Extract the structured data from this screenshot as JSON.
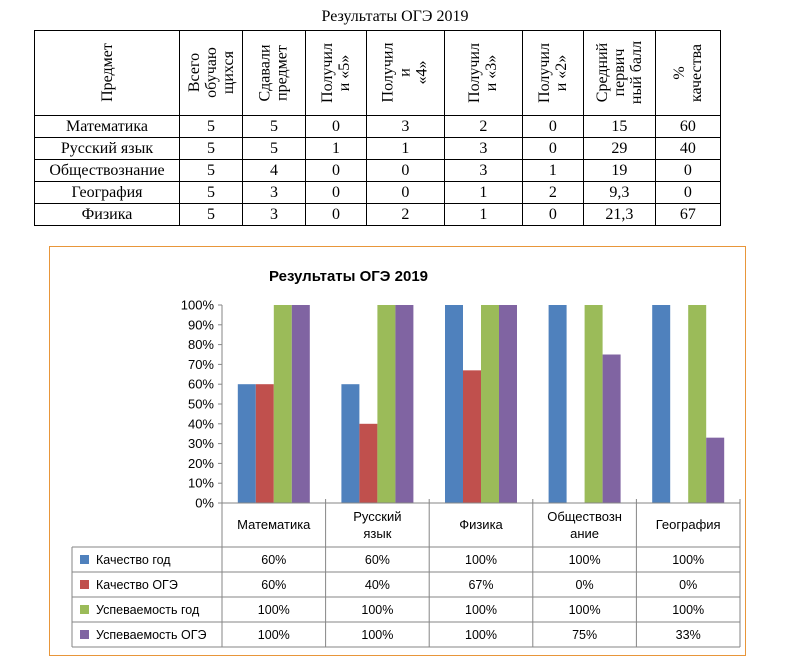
{
  "document": {
    "title": "Результаты ОГЭ 2019"
  },
  "table": {
    "headers": [
      "Предмет",
      "Всего\nобучаю\nщихся",
      "Сдавали\nпредмет",
      "Получил\nи «5»",
      "Получил\nи\n«4»",
      "Получил\nи «3»",
      "Получил\nи «2»",
      "Средний\nпервич\nный балл",
      "%\nкачества"
    ],
    "rows": [
      [
        "Математика",
        "5",
        "5",
        "0",
        "3",
        "2",
        "0",
        "15",
        "60"
      ],
      [
        "Русский язык",
        "5",
        "5",
        "1",
        "1",
        "3",
        "0",
        "29",
        "40"
      ],
      [
        "Обществознание",
        "5",
        "4",
        "0",
        "0",
        "3",
        "1",
        "19",
        "0"
      ],
      [
        "География",
        "5",
        "3",
        "0",
        "0",
        "1",
        "2",
        "9,3",
        "0"
      ],
      [
        "Физика",
        "5",
        "3",
        "0",
        "2",
        "1",
        "0",
        "21,3",
        "67"
      ]
    ]
  },
  "chart_data": {
    "type": "bar",
    "title": "Результаты ОГЭ 2019",
    "categories": [
      "Математика",
      "Русский язык",
      "Физика",
      "Обществознание",
      "География"
    ],
    "category_labels": [
      [
        "Математика"
      ],
      [
        "Русский",
        "язык"
      ],
      [
        "Физика"
      ],
      [
        "Обществозн",
        "ание"
      ],
      [
        "География"
      ]
    ],
    "ylim": [
      0,
      100
    ],
    "yticks": [
      "0%",
      "10%",
      "20%",
      "30%",
      "40%",
      "50%",
      "60%",
      "70%",
      "80%",
      "90%",
      "100%"
    ],
    "grid": false,
    "legend": "data-table",
    "series": [
      {
        "name": "Качество год",
        "color": "#4f81bd",
        "values": [
          60,
          60,
          100,
          100,
          100
        ],
        "labels": [
          "60%",
          "60%",
          "100%",
          "100%",
          "100%"
        ]
      },
      {
        "name": "Качество ОГЭ",
        "color": "#c0504d",
        "values": [
          60,
          40,
          67,
          0,
          0
        ],
        "labels": [
          "60%",
          "40%",
          "67%",
          "0%",
          "0%"
        ]
      },
      {
        "name": "Успеваемость год",
        "color": "#9bbb59",
        "values": [
          100,
          100,
          100,
          100,
          100
        ],
        "labels": [
          "100%",
          "100%",
          "100%",
          "100%",
          "100%"
        ]
      },
      {
        "name": "Успеваемость ОГЭ",
        "color": "#8064a2",
        "values": [
          100,
          100,
          100,
          75,
          33
        ],
        "labels": [
          "100%",
          "100%",
          "100%",
          "75%",
          "33%"
        ]
      }
    ]
  }
}
